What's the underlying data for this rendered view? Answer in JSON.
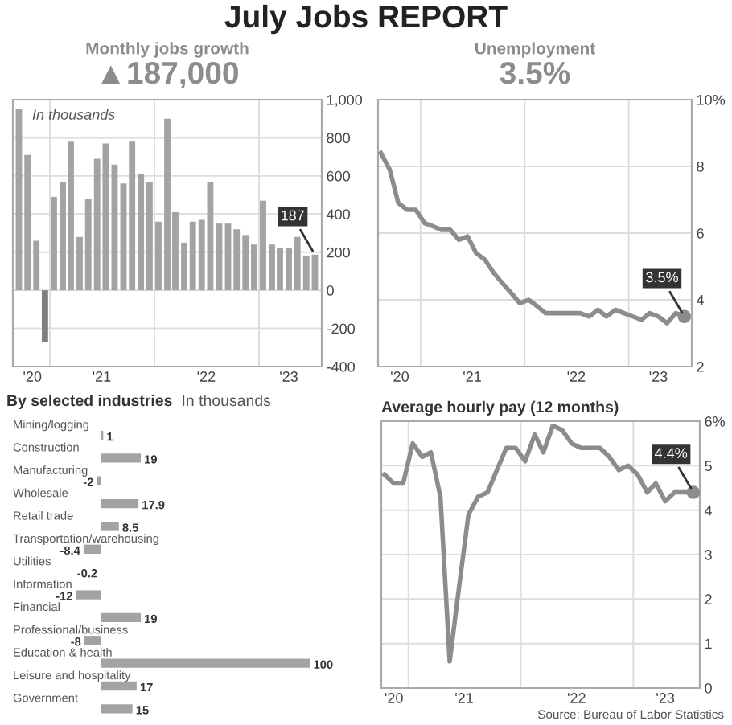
{
  "chart_data": [
    {
      "type": "bar",
      "title": "Monthly jobs growth",
      "subtitle": "▲187,000",
      "annotations": [
        "July Jobs REPORT",
        "In thousands",
        {
          "text": "187",
          "x": "2023-07-15",
          "y": 187
        }
      ],
      "x": [
        "2020-09-15",
        "2020-10-15",
        "2020-11-15",
        "2020-12-15",
        "2021-01-15",
        "2021-02-15",
        "2021-03-15",
        "2021-04-15",
        "2021-05-15",
        "2021-06-15",
        "2021-07-15",
        "2021-08-15",
        "2021-09-15",
        "2021-10-15",
        "2021-11-15",
        "2021-12-15",
        "2022-01-15",
        "2022-02-15",
        "2022-03-15",
        "2022-04-15",
        "2022-05-15",
        "2022-06-15",
        "2022-07-15",
        "2022-08-15",
        "2022-09-15",
        "2022-10-15",
        "2022-11-15",
        "2022-12-15",
        "2023-01-15",
        "2023-02-15",
        "2023-03-15",
        "2023-04-15",
        "2023-05-15",
        "2023-06-15",
        "2023-07-15"
      ],
      "values": [
        950,
        710,
        260,
        -270,
        490,
        570,
        780,
        280,
        480,
        690,
        770,
        660,
        560,
        780,
        610,
        570,
        360,
        900,
        410,
        250,
        360,
        370,
        570,
        350,
        350,
        320,
        290,
        240,
        470,
        240,
        220,
        220,
        280,
        180,
        187
      ],
      "colors": [
        "#a3a3a3",
        "#a3a3a3",
        "#a3a3a3",
        "#7f7f7f",
        "#a3a3a3",
        "#a3a3a3",
        "#a3a3a3",
        "#a3a3a3",
        "#a3a3a3",
        "#a3a3a3",
        "#a3a3a3",
        "#a3a3a3",
        "#a3a3a3",
        "#a3a3a3",
        "#a3a3a3",
        "#a3a3a3",
        "#a3a3a3",
        "#a3a3a3",
        "#a3a3a3",
        "#a3a3a3",
        "#a3a3a3",
        "#a3a3a3",
        "#a3a3a3",
        "#a3a3a3",
        "#a3a3a3",
        "#a3a3a3",
        "#a3a3a3",
        "#a3a3a3",
        "#a3a3a3",
        "#a3a3a3",
        "#a3a3a3",
        "#a3a3a3",
        "#a3a3a3",
        "#a3a3a3",
        "#a3a3a3"
      ],
      "xlim": [
        "2020-08-25",
        "2023-08-08"
      ],
      "xticks": [
        {
          "value": "2020-11-01",
          "label": "'20"
        },
        {
          "value": "2021-01-01",
          "label": null
        },
        {
          "value": "2021-07-01",
          "label": "'21"
        },
        {
          "value": "2022-01-01",
          "label": null
        },
        {
          "value": "2022-07-01",
          "label": "'22"
        },
        {
          "value": "2023-01-01",
          "label": null
        },
        {
          "value": "2023-04-15",
          "label": "'23"
        }
      ],
      "ylim": [
        -400,
        1000
      ],
      "yticks": [
        -400,
        -200,
        0,
        200,
        400,
        600,
        800,
        {
          "value": 1000,
          "label": "1,000"
        }
      ],
      "grid": true
    },
    {
      "type": "line",
      "title": "Unemployment",
      "subtitle": "3.5%",
      "annotations": [
        {
          "text": "3.5%",
          "x": "2023-07-15",
          "y": 3.5
        }
      ],
      "x": [
        "2020-08-15",
        "2020-09-15",
        "2020-10-15",
        "2020-11-15",
        "2020-12-15",
        "2021-01-15",
        "2021-02-15",
        "2021-03-15",
        "2021-04-15",
        "2021-05-15",
        "2021-06-15",
        "2021-07-15",
        "2021-08-15",
        "2021-09-15",
        "2021-10-15",
        "2021-11-15",
        "2021-12-15",
        "2022-01-15",
        "2022-02-15",
        "2022-03-15",
        "2022-04-15",
        "2022-05-15",
        "2022-06-15",
        "2022-07-15",
        "2022-08-15",
        "2022-09-15",
        "2022-10-15",
        "2022-11-15",
        "2022-12-15",
        "2023-01-15",
        "2023-02-15",
        "2023-03-15",
        "2023-04-15",
        "2023-05-15",
        "2023-06-15",
        "2023-07-15"
      ],
      "series": [
        {
          "color": "#8c8c8c",
          "values": [
            8.4,
            7.9,
            6.9,
            6.7,
            6.7,
            6.3,
            6.2,
            6.1,
            6.1,
            5.8,
            5.9,
            5.4,
            5.2,
            4.8,
            4.5,
            4.2,
            3.9,
            4.0,
            3.8,
            3.6,
            3.6,
            3.6,
            3.6,
            3.6,
            3.5,
            3.7,
            3.5,
            3.7,
            3.6,
            3.5,
            3.4,
            3.6,
            3.5,
            3.3,
            3.6,
            3.5
          ]
        }
      ],
      "xlim": [
        "2020-08-05",
        "2023-08-10"
      ],
      "xticks": [
        {
          "value": "2020-10-20",
          "label": "'20"
        },
        {
          "value": "2021-01-01",
          "label": null
        },
        {
          "value": "2021-07-01",
          "label": "'21"
        },
        {
          "value": "2022-01-01",
          "label": null
        },
        {
          "value": "2022-07-01",
          "label": "'22"
        },
        {
          "value": "2023-01-01",
          "label": null
        },
        {
          "value": "2023-04-15",
          "label": "'23"
        }
      ],
      "ylim": [
        2,
        10
      ],
      "yticks": [
        2,
        4,
        6,
        8,
        {
          "value": 10,
          "label": "10%"
        }
      ],
      "grid": true,
      "marker": "none",
      "line_style": "solid"
    },
    {
      "type": "bar",
      "orientation": "horizontal",
      "title": "By selected industries",
      "subtitle": "In thousands",
      "categories": [
        "Mining/logging",
        "Construction",
        "Manufacturing",
        "Wholesale",
        "Retail trade",
        "Transportation/warehousing",
        "Utilities",
        "Information",
        "Financial",
        "Professional/business",
        "Education & health",
        "Leisure and hospitality",
        "Government"
      ],
      "values": [
        1,
        19,
        -2,
        17.9,
        8.5,
        -8.4,
        -0.2,
        -12,
        19,
        -8,
        100,
        17,
        15
      ],
      "color": "#a3a3a3",
      "data_labels": true,
      "tick_labels": false
    },
    {
      "type": "line",
      "title": "Average hourly pay (12 months)",
      "annotations": [
        "Source: Bureau of Labor Statistics",
        {
          "text": "4.4%",
          "x": "2023-07-15",
          "y": 4.4
        }
      ],
      "x": [
        "2020-10-15",
        "2020-11-15",
        "2020-12-15",
        "2021-01-15",
        "2021-02-15",
        "2021-03-15",
        "2021-04-15",
        "2021-05-15",
        "2021-06-15",
        "2021-07-15",
        "2021-08-15",
        "2021-09-15",
        "2021-10-15",
        "2021-11-15",
        "2021-12-15",
        "2022-01-15",
        "2022-02-15",
        "2022-03-15",
        "2022-04-15",
        "2022-05-15",
        "2022-06-15",
        "2022-07-15",
        "2022-08-15",
        "2022-09-15",
        "2022-10-15",
        "2022-11-15",
        "2022-12-15",
        "2023-01-15",
        "2023-02-15",
        "2023-03-15",
        "2023-04-15",
        "2023-05-15",
        "2023-06-15",
        "2023-07-15"
      ],
      "series": [
        {
          "color": "#8c8c8c",
          "values": [
            4.8,
            4.6,
            4.6,
            5.5,
            5.2,
            5.3,
            4.3,
            0.6,
            2.3,
            3.9,
            4.3,
            4.4,
            4.9,
            5.4,
            5.4,
            5.1,
            5.7,
            5.3,
            5.9,
            5.8,
            5.5,
            5.4,
            5.4,
            5.4,
            5.2,
            4.9,
            5.0,
            4.8,
            4.4,
            4.6,
            4.2,
            4.4,
            4.4,
            4.4
          ]
        }
      ],
      "xlim": [
        "2020-10-05",
        "2023-08-05"
      ],
      "xticks": [
        {
          "value": "2020-11-15",
          "label": "'20"
        },
        {
          "value": "2021-01-01",
          "label": null
        },
        {
          "value": "2021-07-01",
          "label": "'21"
        },
        {
          "value": "2022-01-01",
          "label": null
        },
        {
          "value": "2022-07-01",
          "label": "'22"
        },
        {
          "value": "2023-01-01",
          "label": null
        },
        {
          "value": "2023-04-15",
          "label": "'23"
        }
      ],
      "ylim": [
        0,
        6
      ],
      "yticks": [
        0,
        1,
        2,
        3,
        4,
        5,
        {
          "value": 6,
          "label": "6%"
        }
      ],
      "grid": true,
      "marker": "none",
      "line_style": "solid"
    }
  ]
}
